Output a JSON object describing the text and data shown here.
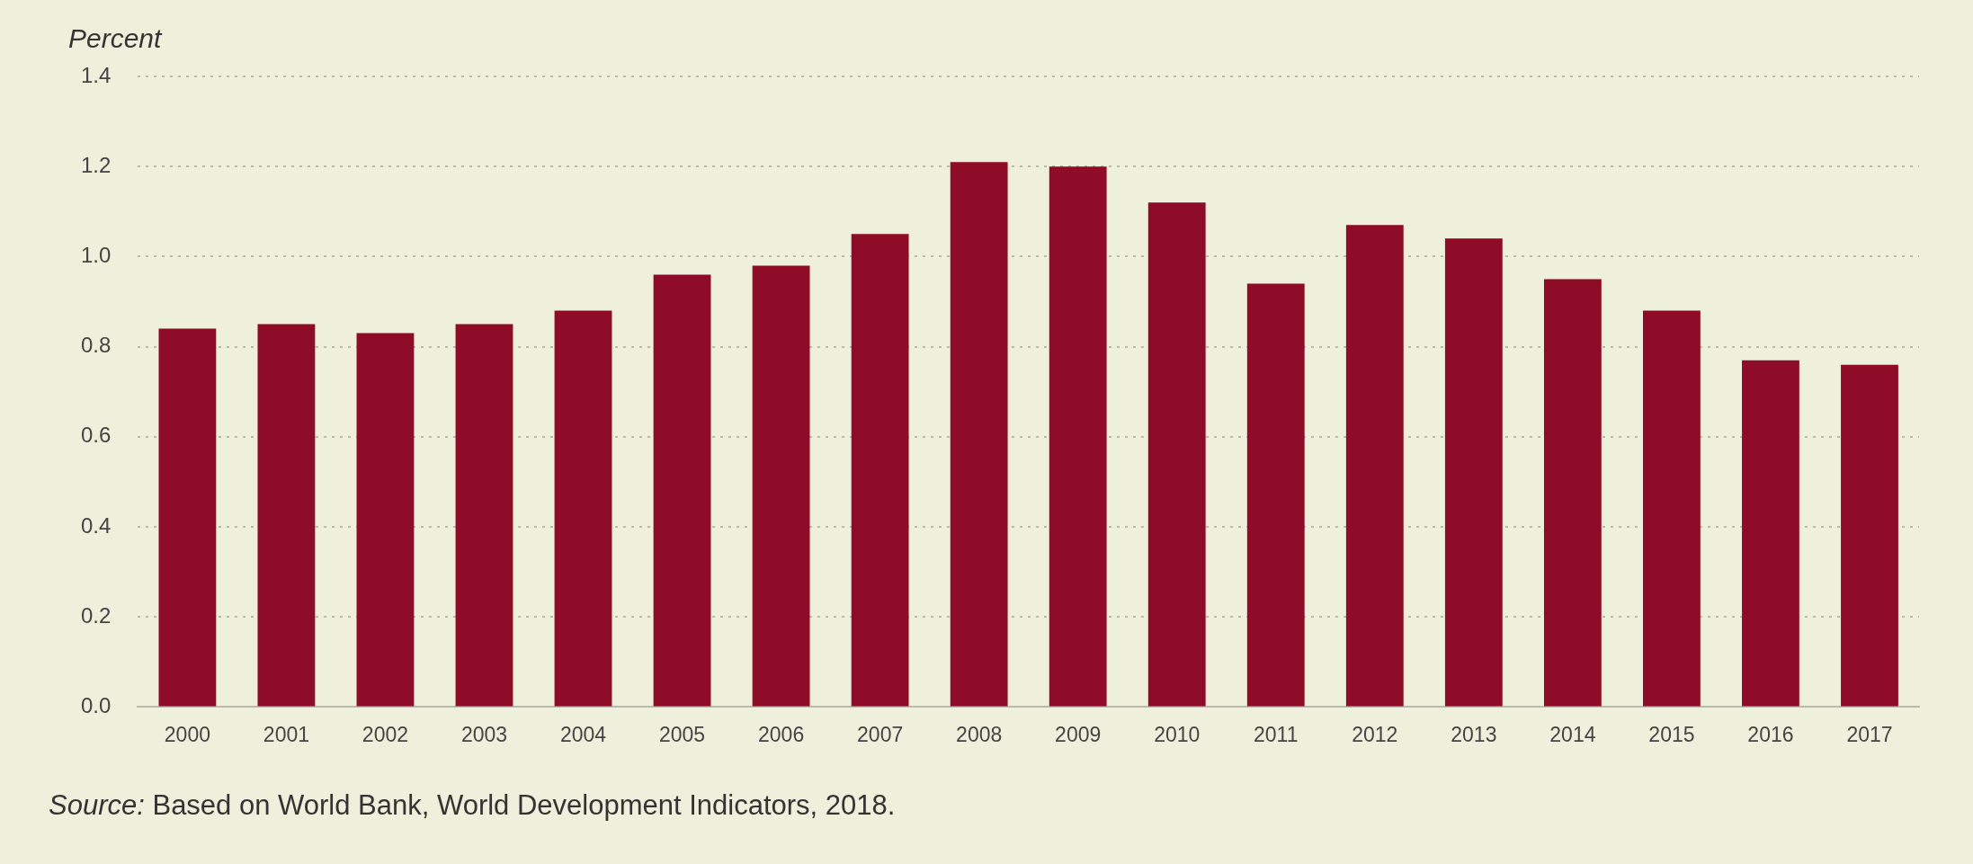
{
  "chart_data": {
    "type": "bar",
    "ylabel": "Percent",
    "categories": [
      "2000",
      "2001",
      "2002",
      "2003",
      "2004",
      "2005",
      "2006",
      "2007",
      "2008",
      "2009",
      "2010",
      "2011",
      "2012",
      "2013",
      "2014",
      "2015",
      "2016",
      "2017"
    ],
    "values": [
      0.84,
      0.85,
      0.83,
      0.85,
      0.88,
      0.96,
      0.98,
      1.05,
      1.21,
      1.2,
      1.12,
      0.94,
      1.07,
      1.04,
      0.95,
      0.88,
      0.77,
      0.76
    ],
    "color": "#8e0c27",
    "ylim": [
      0,
      1.4
    ],
    "yticks": [
      {
        "value": 0,
        "label": "0.0"
      },
      0.2,
      0.4,
      0.6,
      0.8,
      {
        "value": 1,
        "label": "1.0"
      },
      1.2,
      1.4
    ],
    "grid": "y",
    "annotations": [
      "Source: Based on World Bank, World Development Indicators, 2018."
    ]
  }
}
